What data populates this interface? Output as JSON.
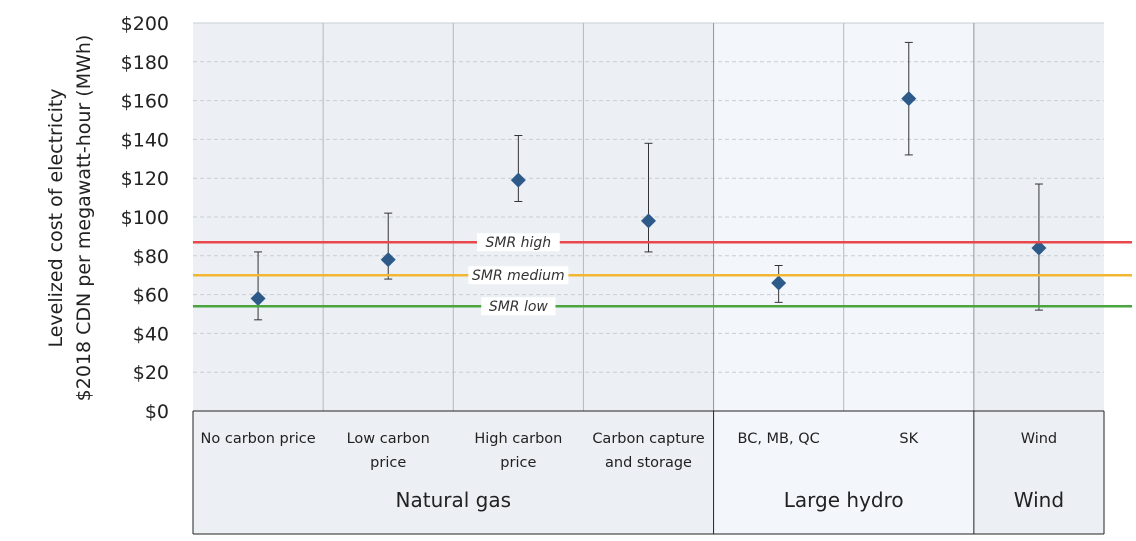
{
  "chart_data": {
    "type": "scatter",
    "ylabel_line1": "Levelized cost of electricity",
    "ylabel_line2": "$2018 CDN per megawatt-hour (MWh)",
    "ylim": [
      0,
      200
    ],
    "y_ticks": [
      "$0",
      "$20",
      "$40",
      "$60",
      "$80",
      "$100",
      "$120",
      "$140",
      "$160",
      "$180",
      "$200"
    ],
    "grid": true,
    "categories": [
      {
        "lines": [
          "No carbon price"
        ],
        "value": 58,
        "low": 47,
        "high": 82
      },
      {
        "lines": [
          "Low carbon",
          "price"
        ],
        "value": 78,
        "low": 68,
        "high": 102
      },
      {
        "lines": [
          "High carbon",
          "price"
        ],
        "value": 119,
        "low": 108,
        "high": 142
      },
      {
        "lines": [
          "Carbon capture",
          "and storage"
        ],
        "value": 98,
        "low": 82,
        "high": 138
      },
      {
        "lines": [
          "BC, MB, QC"
        ],
        "value": 66,
        "low": 56,
        "high": 75
      },
      {
        "lines": [
          "SK"
        ],
        "value": 161,
        "low": 132,
        "high": 190
      },
      {
        "lines": [
          "Wind"
        ],
        "value": 84,
        "low": 52,
        "high": 117
      }
    ],
    "groups": [
      {
        "label": "Natural gas",
        "span": [
          0,
          3
        ]
      },
      {
        "label": "Large hydro",
        "span": [
          4,
          5
        ]
      },
      {
        "label": "Wind",
        "span": [
          6,
          6
        ]
      }
    ],
    "reference_lines": [
      {
        "name": "SMR high",
        "value": 87,
        "color": "#e8474c"
      },
      {
        "name": "SMR medium",
        "value": 70,
        "color": "#f2b632"
      },
      {
        "name": "SMR low",
        "value": 54,
        "color": "#4aa53f"
      }
    ],
    "marker_color": "#2e5a8a",
    "group_backgrounds": [
      "#ecf0f4",
      "#f3f7fc",
      "#ecf0f4"
    ]
  }
}
